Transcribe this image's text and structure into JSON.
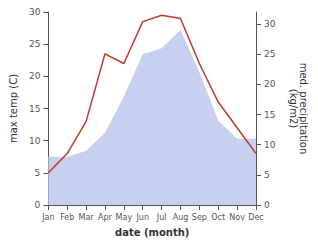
{
  "chart_data": {
    "type": "line",
    "categories": [
      "Jan",
      "Feb",
      "Mar",
      "Apr",
      "May",
      "Jun",
      "Jul",
      "Aug",
      "Sep",
      "Oct",
      "Nov",
      "Dec"
    ],
    "xlabel": "date (month)",
    "ylabel": "max temp (C)",
    "y2label": "med. precipitation\n(kg/m2)",
    "series": [
      {
        "name": "precipitation",
        "type": "area",
        "axis": "y2",
        "color": "#c8d0f0",
        "values": [
          8,
          8,
          9,
          12,
          18,
          25,
          26,
          29,
          22,
          14,
          11,
          11
        ]
      },
      {
        "name": "max temp",
        "type": "line",
        "axis": "y",
        "color": "#c0392b",
        "values": [
          5,
          8,
          13,
          23.5,
          22,
          28.5,
          29.5,
          29,
          22,
          16,
          12,
          8
        ]
      }
    ],
    "ylim": [
      0,
      30
    ],
    "yticks": [
      0,
      5,
      10,
      15,
      20,
      25,
      30
    ],
    "y2lim": [
      0,
      32
    ],
    "y2ticks": [
      0,
      5,
      10,
      15,
      20,
      25,
      30
    ],
    "grid": false,
    "background_color": "#ffffff"
  }
}
